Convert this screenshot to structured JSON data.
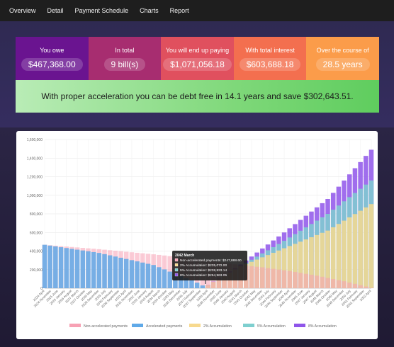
{
  "nav": {
    "items": [
      "Overview",
      "Detail",
      "Payment Schedule",
      "Charts",
      "Report"
    ]
  },
  "summary": {
    "tiles": [
      {
        "label": "You owe",
        "value": "$467,368.00"
      },
      {
        "label": "In total",
        "value": "9 bill(s)"
      },
      {
        "label": "You will end up paying",
        "value": "$1,071,056.18"
      },
      {
        "label": "With total interest",
        "value": "$603,688.18"
      },
      {
        "label": "Over the course of",
        "value": "28.5 years"
      }
    ],
    "banner": "With proper acceleration you can be debt free in 14.1 years and save $302,643.51."
  },
  "colors": {
    "non_accelerated": "#f7a1b4",
    "accelerated": "#5fa9e8",
    "acc2": "#f7d98e",
    "acc5": "#7ecfcf",
    "acc8": "#8f55ea"
  },
  "chart_data": {
    "type": "bar",
    "stacked": false,
    "x_tick_labels": [
      "2024 April",
      "2024 November",
      "2025 June",
      "2026 January",
      "2026 August",
      "2027 March",
      "2027 October",
      "2028 May",
      "2028 December",
      "2029 July",
      "2030 February",
      "2030 September",
      "2031 April",
      "2031 November",
      "2032 June",
      "2033 January",
      "2033 August",
      "2034 March",
      "2034 October",
      "2035 May",
      "2035 December",
      "2036 July",
      "2037 February",
      "2037 September",
      "2038 April",
      "2038 November",
      "2039 June",
      "2040 January",
      "2040 August",
      "2041 March",
      "2041 October",
      "2042 May",
      "2042 December",
      "2043 July",
      "2044 February",
      "2044 September",
      "2045 April",
      "2045 November",
      "2046 June",
      "2047 January",
      "2047 August",
      "2048 March",
      "2048 October",
      "2049 May",
      "2049 December",
      "2050 July",
      "2051 February",
      "2051 September",
      "2052 April"
    ],
    "y_ticks": [
      "0",
      "200,000",
      "400,000",
      "600,000",
      "800,000",
      "1,000,000",
      "1,200,000",
      "1,400,000",
      "1,600,000"
    ],
    "ylim": [
      0,
      1600000
    ],
    "series": [
      {
        "name": "Non-accelerated payments",
        "color_key": "non_accelerated",
        "points": [
          [
            0,
            467368
          ],
          [
            10,
            420000
          ],
          [
            20,
            365000
          ],
          [
            30,
            300000
          ],
          [
            36,
            247888.6
          ],
          [
            40,
            225000
          ],
          [
            45,
            185000
          ],
          [
            50,
            135000
          ],
          [
            55,
            75000
          ],
          [
            60,
            5000
          ]
        ]
      },
      {
        "name": "Accelerated payments",
        "color_key": "accelerated",
        "points": [
          [
            0,
            467368
          ],
          [
            10,
            380000
          ],
          [
            20,
            250000
          ],
          [
            28,
            60000
          ],
          [
            30,
            0
          ]
        ]
      },
      {
        "name": "2% Accumulation",
        "color_key": "acc2",
        "points": [
          [
            0,
            0
          ],
          [
            29,
            0
          ],
          [
            36,
            235072.0
          ],
          [
            44,
            430000
          ],
          [
            52,
            620000
          ],
          [
            60,
            905000
          ]
        ]
      },
      {
        "name": "5% Accumulation",
        "color_key": "acc5",
        "points": [
          [
            0,
            0
          ],
          [
            29,
            0
          ],
          [
            36,
            238833.14
          ],
          [
            44,
            510000
          ],
          [
            52,
            800000
          ],
          [
            60,
            1160000
          ]
        ]
      },
      {
        "name": "8% Accumulation",
        "color_key": "acc8",
        "points": [
          [
            0,
            0
          ],
          [
            29,
            0
          ],
          [
            36,
            254963.05
          ],
          [
            44,
            600000
          ],
          [
            52,
            960000
          ],
          [
            60,
            1490000
          ]
        ]
      }
    ],
    "tooltip": {
      "title": "2042 March",
      "lines": [
        "Non-accelerated payments: $247,888.60",
        "2% Accumulation: $235,072.00",
        "5% Accumulation: $238,833.14",
        "8% Accumulation: $254,963.05"
      ]
    },
    "legend": [
      "Non-accelerated payments",
      "Accelerated payments",
      "2% Accumulation",
      "5% Accumulation",
      "8% Accumulation"
    ],
    "legend_placement": "bottom",
    "grid": true
  }
}
